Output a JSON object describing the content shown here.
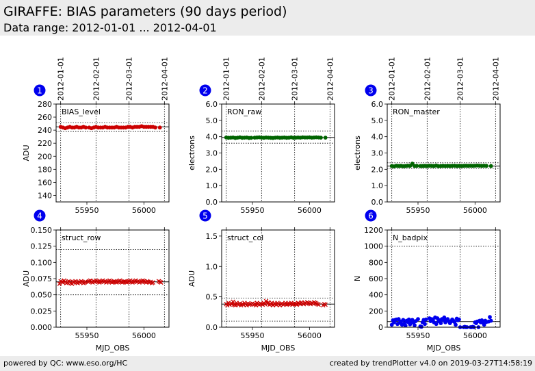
{
  "header": {
    "title": "GIRAFFE: BIAS parameters (90 days period)",
    "subtitle": "Data range: 2012-01-01 ... 2012-04-01"
  },
  "footer": {
    "left": "powered by QC: www.eso.org/HC",
    "right": "created by trendPlotter v4.0 on 2019-03-27T14:58:19"
  },
  "colors": {
    "red": "#cc0000",
    "green": "#006400",
    "blue": "#0000ee",
    "badge": "#0000ee"
  },
  "chart_data": [
    {
      "type": "scatter",
      "badge": "1",
      "name": "BIAS_level",
      "ylabel": "ADU",
      "xlabel": "",
      "xlim": [
        55923,
        56022
      ],
      "ylim": [
        130,
        280
      ],
      "yticks": [
        140,
        160,
        180,
        200,
        220,
        240,
        260,
        280
      ],
      "ytick_labels": [
        "140",
        "160",
        "180",
        "200",
        "220",
        "240",
        "260",
        "280"
      ],
      "xticks": [
        55950,
        56000
      ],
      "xtick_labels": [
        "55950",
        "56000"
      ],
      "date_ticks": [
        55927,
        55958,
        55987,
        56018
      ],
      "date_labels": [
        "2012-01-01",
        "2012-02-01",
        "2012-03-01",
        "2012-04-01"
      ],
      "ref_lines": [
        251,
        245,
        238
      ],
      "marker": "circle",
      "color": "red",
      "x": [
        55927,
        55929,
        55931,
        55933,
        55935,
        55937,
        55939,
        55941,
        55943,
        55945,
        55947,
        55949,
        55952,
        55954,
        55956,
        55958,
        55960,
        55962,
        55964,
        55966,
        55968,
        55970,
        55972,
        55974,
        55976,
        55978,
        55980,
        55982,
        55984,
        55986,
        55988,
        55990,
        55992,
        55994,
        55996,
        55998,
        56000,
        56002,
        56004,
        56006,
        56008,
        56010,
        56014
      ],
      "y": [
        245,
        244,
        243,
        244,
        245,
        244,
        244,
        245,
        244,
        244,
        245,
        244,
        244,
        243,
        244,
        245,
        244,
        244,
        244,
        245,
        244,
        244,
        244,
        244,
        245,
        244,
        244,
        244,
        244,
        245,
        245,
        244,
        245,
        245,
        245,
        246,
        245,
        245,
        245,
        245,
        245,
        244,
        244
      ]
    },
    {
      "type": "scatter",
      "badge": "2",
      "name": "RON_raw",
      "ylabel": "electrons",
      "xlabel": "",
      "xlim": [
        55923,
        56022
      ],
      "ylim": [
        0,
        6
      ],
      "yticks": [
        0,
        1,
        2,
        3,
        4,
        5,
        6
      ],
      "ytick_labels": [
        "0.0",
        "1.0",
        "2.0",
        "3.0",
        "4.0",
        "5.0",
        "6.0"
      ],
      "xticks": [
        55950,
        56000
      ],
      "xtick_labels": [
        "55950",
        "56000"
      ],
      "date_ticks": [
        55927,
        55958,
        55987,
        56018
      ],
      "date_labels": [
        "2012-01-01",
        "2012-02-01",
        "2012-03-01",
        "2012-04-01"
      ],
      "ref_lines": [
        4.35,
        3.95,
        3.6
      ],
      "marker": "circle",
      "color": "green",
      "x": [
        55927,
        55929,
        55931,
        55933,
        55935,
        55937,
        55939,
        55941,
        55943,
        55945,
        55947,
        55949,
        55952,
        55954,
        55956,
        55958,
        55960,
        55962,
        55964,
        55966,
        55968,
        55970,
        55972,
        55974,
        55976,
        55978,
        55980,
        55982,
        55984,
        55986,
        55988,
        55990,
        55992,
        55994,
        55996,
        55998,
        56000,
        56002,
        56004,
        56006,
        56008,
        56010,
        56014
      ],
      "y": [
        3.95,
        3.93,
        3.94,
        3.95,
        3.92,
        3.94,
        3.96,
        3.93,
        3.94,
        3.95,
        3.92,
        3.93,
        3.94,
        3.95,
        3.96,
        3.94,
        3.93,
        3.95,
        3.94,
        3.93,
        3.92,
        3.94,
        3.95,
        3.93,
        3.94,
        3.95,
        3.93,
        3.94,
        3.96,
        3.93,
        3.94,
        3.95,
        3.94,
        3.96,
        3.95,
        3.95,
        3.96,
        3.94,
        3.95,
        3.96,
        3.95,
        3.94,
        3.94
      ]
    },
    {
      "type": "scatter",
      "badge": "3",
      "name": "RON_master",
      "ylabel": "electrons",
      "xlabel": "",
      "xlim": [
        55923,
        56022
      ],
      "ylim": [
        0,
        6
      ],
      "yticks": [
        0,
        1,
        2,
        3,
        4,
        5,
        6
      ],
      "ytick_labels": [
        "0.0",
        "1.0",
        "2.0",
        "3.0",
        "4.0",
        "5.0",
        "6.0"
      ],
      "xticks": [
        55950,
        56000
      ],
      "xtick_labels": [
        "55950",
        "56000"
      ],
      "date_ticks": [
        55927,
        55958,
        55987,
        56018
      ],
      "date_labels": [
        "2012-01-01",
        "2012-02-01",
        "2012-03-01",
        "2012-04-01"
      ],
      "ref_lines": [
        2.4,
        2.2,
        2.05
      ],
      "marker": "circle",
      "color": "green",
      "x": [
        55927,
        55929,
        55931,
        55933,
        55935,
        55937,
        55939,
        55941,
        55943,
        55945,
        55947,
        55949,
        55952,
        55954,
        55956,
        55958,
        55960,
        55962,
        55964,
        55966,
        55968,
        55970,
        55972,
        55974,
        55976,
        55978,
        55980,
        55982,
        55984,
        55986,
        55988,
        55990,
        55992,
        55994,
        55996,
        55998,
        56000,
        56002,
        56004,
        56006,
        56008,
        56010,
        56014
      ],
      "y": [
        2.2,
        2.18,
        2.22,
        2.2,
        2.21,
        2.19,
        2.2,
        2.22,
        2.21,
        2.35,
        2.2,
        2.21,
        2.2,
        2.2,
        2.21,
        2.2,
        2.22,
        2.21,
        2.2,
        2.23,
        2.19,
        2.2,
        2.21,
        2.2,
        2.21,
        2.2,
        2.21,
        2.22,
        2.2,
        2.21,
        2.2,
        2.21,
        2.22,
        2.21,
        2.22,
        2.21,
        2.22,
        2.23,
        2.22,
        2.21,
        2.22,
        2.21,
        2.2
      ]
    },
    {
      "type": "scatter",
      "badge": "4",
      "name": "struct_row",
      "ylabel": "ADU",
      "xlabel": "MJD_OBS",
      "xlim": [
        55923,
        56022
      ],
      "ylim": [
        0,
        0.15
      ],
      "yticks": [
        0,
        0.025,
        0.05,
        0.075,
        0.1,
        0.125,
        0.15
      ],
      "ytick_labels": [
        "0.000",
        "0.025",
        "0.050",
        "0.075",
        "0.100",
        "0.125",
        "0.150"
      ],
      "xticks": [
        55950,
        56000
      ],
      "xtick_labels": [
        "55950",
        "56000"
      ],
      "date_ticks": [
        55927,
        55958,
        55987,
        56018
      ],
      "date_labels": [],
      "ref_lines": [
        0.12,
        0.07,
        0.05
      ],
      "marker": "x",
      "color": "red",
      "x": [
        55926,
        55927,
        55928,
        55929,
        55930,
        55931,
        55932,
        55933,
        55934,
        55935,
        55936,
        55937,
        55938,
        55939,
        55940,
        55941,
        55942,
        55943,
        55944,
        55945,
        55946,
        55947,
        55948,
        55949,
        55951,
        55952,
        55953,
        55954,
        55955,
        55956,
        55957,
        55958,
        55959,
        55960,
        55961,
        55962,
        55963,
        55964,
        55965,
        55966,
        55967,
        55968,
        55969,
        55970,
        55971,
        55972,
        55973,
        55974,
        55975,
        55976,
        55977,
        55978,
        55979,
        55980,
        55981,
        55982,
        55983,
        55984,
        55985,
        55986,
        55987,
        55988,
        55989,
        55990,
        55991,
        55992,
        55993,
        55994,
        55995,
        55996,
        55997,
        55998,
        55999,
        56000,
        56001,
        56002,
        56003,
        56004,
        56005,
        56006,
        56007,
        56008,
        56013,
        56014,
        56015
      ],
      "y": [
        0.067,
        0.071,
        0.07,
        0.069,
        0.072,
        0.07,
        0.068,
        0.069,
        0.071,
        0.07,
        0.068,
        0.067,
        0.069,
        0.07,
        0.071,
        0.069,
        0.068,
        0.07,
        0.069,
        0.071,
        0.07,
        0.068,
        0.069,
        0.07,
        0.07,
        0.071,
        0.072,
        0.07,
        0.069,
        0.071,
        0.07,
        0.072,
        0.071,
        0.07,
        0.069,
        0.07,
        0.071,
        0.072,
        0.07,
        0.071,
        0.069,
        0.07,
        0.071,
        0.072,
        0.07,
        0.069,
        0.07,
        0.071,
        0.07,
        0.069,
        0.07,
        0.071,
        0.072,
        0.07,
        0.069,
        0.07,
        0.071,
        0.07,
        0.069,
        0.07,
        0.071,
        0.072,
        0.07,
        0.069,
        0.07,
        0.071,
        0.072,
        0.07,
        0.071,
        0.069,
        0.07,
        0.071,
        0.072,
        0.071,
        0.07,
        0.069,
        0.071,
        0.07,
        0.069,
        0.07,
        0.068,
        0.069,
        0.071,
        0.07,
        0.069
      ]
    },
    {
      "type": "scatter",
      "badge": "5",
      "name": "struct_col",
      "ylabel": "ADU",
      "xlabel": "MJD_OBS",
      "xlim": [
        55923,
        56022
      ],
      "ylim": [
        0,
        1.6
      ],
      "yticks": [
        0,
        0.5,
        1.0,
        1.5
      ],
      "ytick_labels": [
        "0.0",
        "0.5",
        "1.0",
        "1.5"
      ],
      "xticks": [
        55950,
        56000
      ],
      "xtick_labels": [
        "55950",
        "56000"
      ],
      "date_ticks": [
        55927,
        55958,
        55987,
        56018
      ],
      "date_labels": [],
      "ref_lines": [
        0.48,
        0.38,
        0.1
      ],
      "marker": "x",
      "color": "red",
      "x": [
        55927,
        55928,
        55929,
        55930,
        55931,
        55932,
        55933,
        55934,
        55935,
        55936,
        55937,
        55938,
        55939,
        55940,
        55941,
        55942,
        55943,
        55944,
        55945,
        55946,
        55947,
        55948,
        55950,
        55951,
        55952,
        55953,
        55954,
        55955,
        55956,
        55957,
        55958,
        55959,
        55960,
        55961,
        55962,
        55963,
        55964,
        55965,
        55966,
        55967,
        55968,
        55969,
        55970,
        55971,
        55972,
        55973,
        55974,
        55975,
        55976,
        55977,
        55978,
        55979,
        55980,
        55981,
        55982,
        55983,
        55984,
        55985,
        55986,
        55987,
        55988,
        55989,
        55990,
        55991,
        55992,
        55993,
        55994,
        55995,
        55996,
        55997,
        55998,
        55999,
        56000,
        56001,
        56002,
        56003,
        56004,
        56005,
        56006,
        56007,
        56008,
        56012,
        56013,
        56014
      ],
      "y": [
        0.38,
        0.36,
        0.4,
        0.37,
        0.39,
        0.38,
        0.42,
        0.37,
        0.36,
        0.4,
        0.38,
        0.37,
        0.39,
        0.36,
        0.38,
        0.37,
        0.4,
        0.38,
        0.36,
        0.39,
        0.37,
        0.38,
        0.39,
        0.37,
        0.38,
        0.36,
        0.4,
        0.38,
        0.37,
        0.39,
        0.38,
        0.37,
        0.4,
        0.38,
        0.43,
        0.39,
        0.41,
        0.37,
        0.38,
        0.4,
        0.36,
        0.39,
        0.38,
        0.37,
        0.4,
        0.38,
        0.36,
        0.38,
        0.39,
        0.37,
        0.38,
        0.4,
        0.37,
        0.38,
        0.39,
        0.38,
        0.4,
        0.37,
        0.38,
        0.39,
        0.38,
        0.37,
        0.4,
        0.39,
        0.38,
        0.41,
        0.39,
        0.38,
        0.4,
        0.39,
        0.41,
        0.4,
        0.39,
        0.38,
        0.4,
        0.39,
        0.41,
        0.4,
        0.39,
        0.38,
        0.37,
        0.36,
        0.38,
        0.37
      ]
    },
    {
      "type": "scatter",
      "badge": "6",
      "name": "N_badpix",
      "ylabel": "N",
      "xlabel": "MJD_OBS",
      "xlim": [
        55923,
        56022
      ],
      "ylim": [
        0,
        1200
      ],
      "yticks": [
        0,
        200,
        400,
        600,
        800,
        1000,
        1200
      ],
      "ytick_labels": [
        "0",
        "200",
        "400",
        "600",
        "800",
        "1000",
        "1200"
      ],
      "xticks": [
        55950,
        56000
      ],
      "xtick_labels": [
        "55950",
        "56000"
      ],
      "date_ticks": [
        55927,
        55958,
        55987,
        56018
      ],
      "date_labels": [],
      "ref_lines": [
        1000,
        70,
        0
      ],
      "marker": "circle",
      "color": "blue",
      "x": [
        55927,
        55928,
        55929,
        55930,
        55931,
        55932,
        55933,
        55934,
        55935,
        55936,
        55937,
        55938,
        55939,
        55940,
        55941,
        55942,
        55943,
        55944,
        55945,
        55946,
        55947,
        55948,
        55950,
        55952,
        55953,
        55954,
        55955,
        55956,
        55957,
        55960,
        55961,
        55962,
        55963,
        55964,
        55965,
        55966,
        55967,
        55968,
        55969,
        55970,
        55971,
        55972,
        55973,
        55974,
        55975,
        55976,
        55977,
        55978,
        55979,
        55980,
        55981,
        55982,
        55983,
        55984,
        55985,
        55986,
        55987,
        55990,
        55991,
        55992,
        55993,
        55996,
        55997,
        55998,
        55999,
        56000,
        56001,
        56002,
        56003,
        56004,
        56005,
        56006,
        56007,
        56008,
        56009,
        56010,
        56012,
        56013,
        56014
      ],
      "y": [
        30,
        85,
        60,
        90,
        95,
        40,
        100,
        55,
        70,
        30,
        90,
        45,
        20,
        80,
        65,
        95,
        35,
        70,
        90,
        55,
        25,
        75,
        100,
        10,
        5,
        60,
        90,
        40,
        95,
        110,
        75,
        100,
        90,
        60,
        120,
        40,
        110,
        75,
        85,
        50,
        100,
        90,
        120,
        60,
        85,
        100,
        75,
        50,
        70,
        95,
        80,
        65,
        30,
        105,
        85,
        95,
        0,
        0,
        5,
        0,
        0,
        0,
        0,
        5,
        0,
        60,
        50,
        70,
        0,
        80,
        60,
        85,
        55,
        30,
        80,
        65,
        70,
        125,
        80
      ]
    }
  ]
}
